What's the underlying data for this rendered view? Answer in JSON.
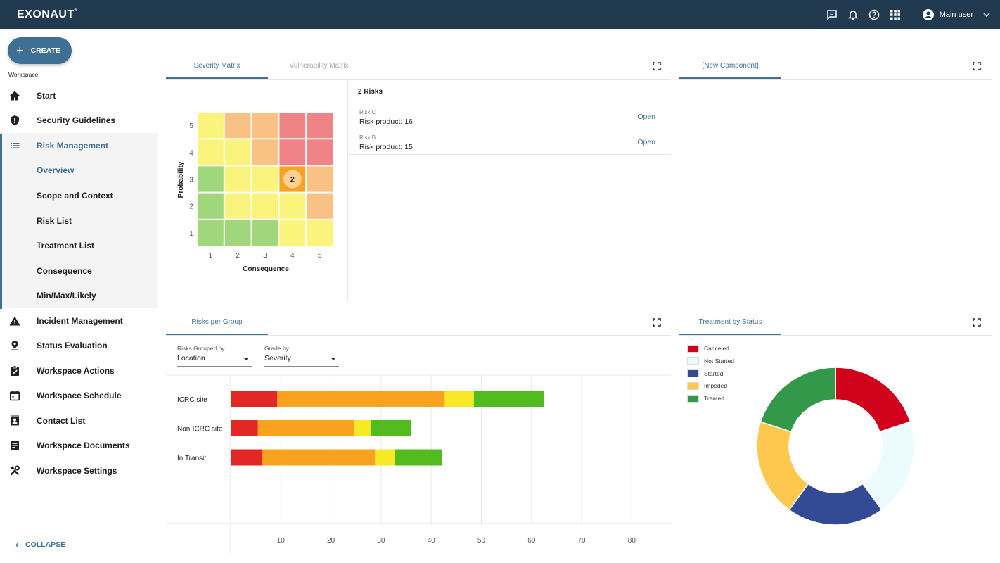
{
  "app": {
    "logo": "EXONAUT",
    "logo_mark": "®",
    "user_name": "Main user"
  },
  "sidebar": {
    "create_label": "CREATE",
    "workspace_label": "Workspace",
    "collapse_label": "COLLAPSE",
    "items": [
      {
        "label": "Start",
        "icon": "home-icon"
      },
      {
        "label": "Security Guidelines",
        "icon": "shield-icon"
      },
      {
        "label": "Risk Management",
        "icon": "list-icon",
        "active": true
      },
      {
        "label": "Overview",
        "sub": true,
        "selected": true
      },
      {
        "label": "Scope and Context",
        "sub": true
      },
      {
        "label": "Risk List",
        "sub": true
      },
      {
        "label": "Treatment List",
        "sub": true
      },
      {
        "label": "Consequence",
        "sub": true
      },
      {
        "label": "Min/Max/Likely",
        "sub": true
      },
      {
        "label": "Incident Management",
        "icon": "warning-icon"
      },
      {
        "label": "Status Evaluation",
        "icon": "pin-icon"
      },
      {
        "label": "Workspace Actions",
        "icon": "clipboard-check-icon"
      },
      {
        "label": "Workspace Schedule",
        "icon": "calendar-icon"
      },
      {
        "label": "Contact List",
        "icon": "contact-icon"
      },
      {
        "label": "Workspace Documents",
        "icon": "document-icon"
      },
      {
        "label": "Workspace Settings",
        "icon": "tools-icon"
      }
    ]
  },
  "matrix_panel": {
    "tabs": [
      "Severity Matrix",
      "Vulnerability Matrix"
    ],
    "risk_count": "2 Risks",
    "risks": [
      {
        "name": "Risk C",
        "product": "Risk product: 16",
        "action": "Open"
      },
      {
        "name": "Risk B",
        "product": "Risk product: 15",
        "action": "Open"
      }
    ]
  },
  "matrix_data": {
    "xlabel": "Consequence",
    "ylabel": "Probability",
    "x_ticks": [
      "1",
      "2",
      "3",
      "4",
      "5"
    ],
    "y_ticks": [
      "5",
      "4",
      "3",
      "2",
      "1"
    ],
    "cell_colors": [
      [
        "#fbf47c",
        "#f9c183",
        "#f9c183",
        "#f08385",
        "#f08385"
      ],
      [
        "#fbf47c",
        "#fbf47c",
        "#f9c183",
        "#f08385",
        "#f08385"
      ],
      [
        "#a0d67c",
        "#fbf47c",
        "#fbf47c",
        "#f9a21f",
        "#f9c183"
      ],
      [
        "#a0d67c",
        "#fbf47c",
        "#fbf47c",
        "#fbf47c",
        "#f9c183"
      ],
      [
        "#a0d67c",
        "#a0d67c",
        "#a0d67c",
        "#fbf47c",
        "#fbf47c"
      ]
    ],
    "marker": {
      "probability": 3,
      "consequence": 4,
      "count": "2"
    }
  },
  "new_component": {
    "tab": "[New Component]"
  },
  "group_panel": {
    "tab": "Risks per Group",
    "grouped_by_label": "Risks Grouped by",
    "grouped_by_value": "Location",
    "grade_by_label": "Grade by",
    "grade_by_value": "Severity"
  },
  "status_panel": {
    "tab": "Treatment by Status"
  },
  "chart_data": [
    {
      "type": "bar",
      "orientation": "horizontal-stacked",
      "categories": [
        "ICRC site",
        "Non-ICRC site",
        "In Transit"
      ],
      "series": [
        {
          "color": "#e32726",
          "values": [
            9.3,
            5.4,
            6.3
          ]
        },
        {
          "color": "#f9a21f",
          "values": [
            33.4,
            19.3,
            22.5
          ]
        },
        {
          "color": "#f7e926",
          "values": [
            5.8,
            3.2,
            3.9
          ]
        },
        {
          "color": "#52bb1d",
          "values": [
            14.0,
            8.1,
            9.4
          ]
        }
      ],
      "x_ticks": [
        "10",
        "20",
        "30",
        "40",
        "50",
        "60",
        "70",
        "80"
      ],
      "xlim": [
        0,
        85
      ]
    },
    {
      "type": "pie",
      "style": "donut",
      "legend_position": "top-left",
      "labels": [
        "Canceled",
        "Not Started",
        "Started",
        "Impeded",
        "Treated"
      ],
      "values": [
        20,
        20,
        20,
        20,
        20
      ],
      "colors": [
        "#d0021b",
        "#ecfbfd",
        "#334a94",
        "#fec84e",
        "#339849"
      ]
    }
  ]
}
